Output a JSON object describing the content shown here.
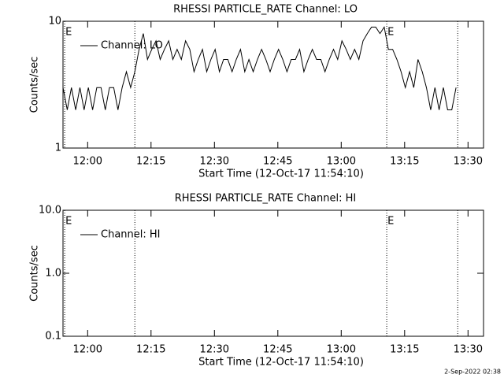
{
  "chart_data": [
    {
      "type": "line",
      "title": "RHESSI PARTICLE_RATE Channel: LO",
      "x_label": "Start Time (12-Oct-17 11:54:10)",
      "y_label": "Counts/sec",
      "log_y": true,
      "legend": "upper left",
      "xlim": [
        0,
        99.5
      ],
      "xticks": [
        {
          "value": 5.83,
          "label": "12:00"
        },
        {
          "value": 20.83,
          "label": "12:15"
        },
        {
          "value": 35.83,
          "label": "12:30"
        },
        {
          "value": 50.83,
          "label": "12:45"
        },
        {
          "value": 65.83,
          "label": "13:00"
        },
        {
          "value": 80.83,
          "label": "13:15"
        },
        {
          "value": 95.83,
          "label": "13:30"
        }
      ],
      "ylim": [
        1,
        10
      ],
      "yticks": [
        1,
        10
      ],
      "events": [
        {
          "x": 0.4,
          "label": "E"
        },
        {
          "x": 17.0
        },
        {
          "x": 76.6,
          "label": "E"
        },
        {
          "x": 93.4
        }
      ],
      "series": [
        {
          "name": "Channel: LO",
          "color": "#000000",
          "x": [
            0,
            1,
            2,
            3,
            4,
            5,
            6,
            7,
            8,
            9,
            10,
            11,
            12,
            13,
            14,
            15,
            16,
            17,
            18,
            19,
            20,
            21,
            22,
            23,
            24,
            25,
            26,
            27,
            28,
            29,
            30,
            31,
            32,
            33,
            34,
            35,
            36,
            37,
            38,
            39,
            40,
            41,
            42,
            43,
            44,
            45,
            46,
            47,
            48,
            49,
            50,
            51,
            52,
            53,
            54,
            55,
            56,
            57,
            58,
            59,
            60,
            61,
            62,
            63,
            64,
            65,
            66,
            67,
            68,
            69,
            70,
            71,
            72,
            73,
            74,
            75,
            76,
            77,
            78,
            79,
            80,
            81,
            82,
            83,
            84,
            85,
            86,
            87,
            88,
            89,
            90,
            91,
            92,
            93
          ],
          "values": [
            3,
            2,
            3,
            2,
            3,
            2,
            3,
            2,
            3,
            3,
            2,
            3,
            3,
            2,
            3,
            4,
            3,
            4,
            6,
            8,
            5,
            6,
            7,
            5,
            6,
            7,
            5,
            6,
            5,
            7,
            6,
            4,
            5,
            6,
            4,
            5,
            6,
            4,
            5,
            5,
            4,
            5,
            6,
            4,
            5,
            4,
            5,
            6,
            5,
            4,
            5,
            6,
            5,
            4,
            5,
            5,
            6,
            4,
            5,
            6,
            5,
            5,
            4,
            5,
            6,
            5,
            7,
            6,
            5,
            6,
            5,
            7,
            8,
            9,
            9,
            8,
            9,
            6,
            6,
            5,
            4,
            3,
            4,
            3,
            5,
            4,
            3,
            2,
            3,
            2,
            3,
            2,
            2,
            3
          ]
        }
      ]
    },
    {
      "type": "line",
      "title": "RHESSI PARTICLE_RATE Channel: HI",
      "x_label": "Start Time (12-Oct-17 11:54:10)",
      "y_label": "Counts/sec",
      "log_y": true,
      "legend": "upper left",
      "xlim": [
        0,
        99.5
      ],
      "xticks": [
        {
          "value": 5.83,
          "label": "12:00"
        },
        {
          "value": 20.83,
          "label": "12:15"
        },
        {
          "value": 35.83,
          "label": "12:30"
        },
        {
          "value": 50.83,
          "label": "12:45"
        },
        {
          "value": 65.83,
          "label": "13:00"
        },
        {
          "value": 80.83,
          "label": "13:15"
        },
        {
          "value": 95.83,
          "label": "13:30"
        }
      ],
      "ylim": [
        0.1,
        10
      ],
      "yticks": [
        0.1,
        {
          "value": 1,
          "label": "1.0"
        },
        {
          "value": 10,
          "label": "10.0"
        }
      ],
      "events": [
        {
          "x": 0.4,
          "label": "E"
        },
        {
          "x": 17.0
        },
        {
          "x": 76.6,
          "label": "E"
        },
        {
          "x": 93.4
        }
      ],
      "series": [
        {
          "name": "Channel: HI",
          "color": "#000000",
          "x": [],
          "values": []
        }
      ]
    }
  ],
  "footer": "2-Sep-2022 02:38"
}
